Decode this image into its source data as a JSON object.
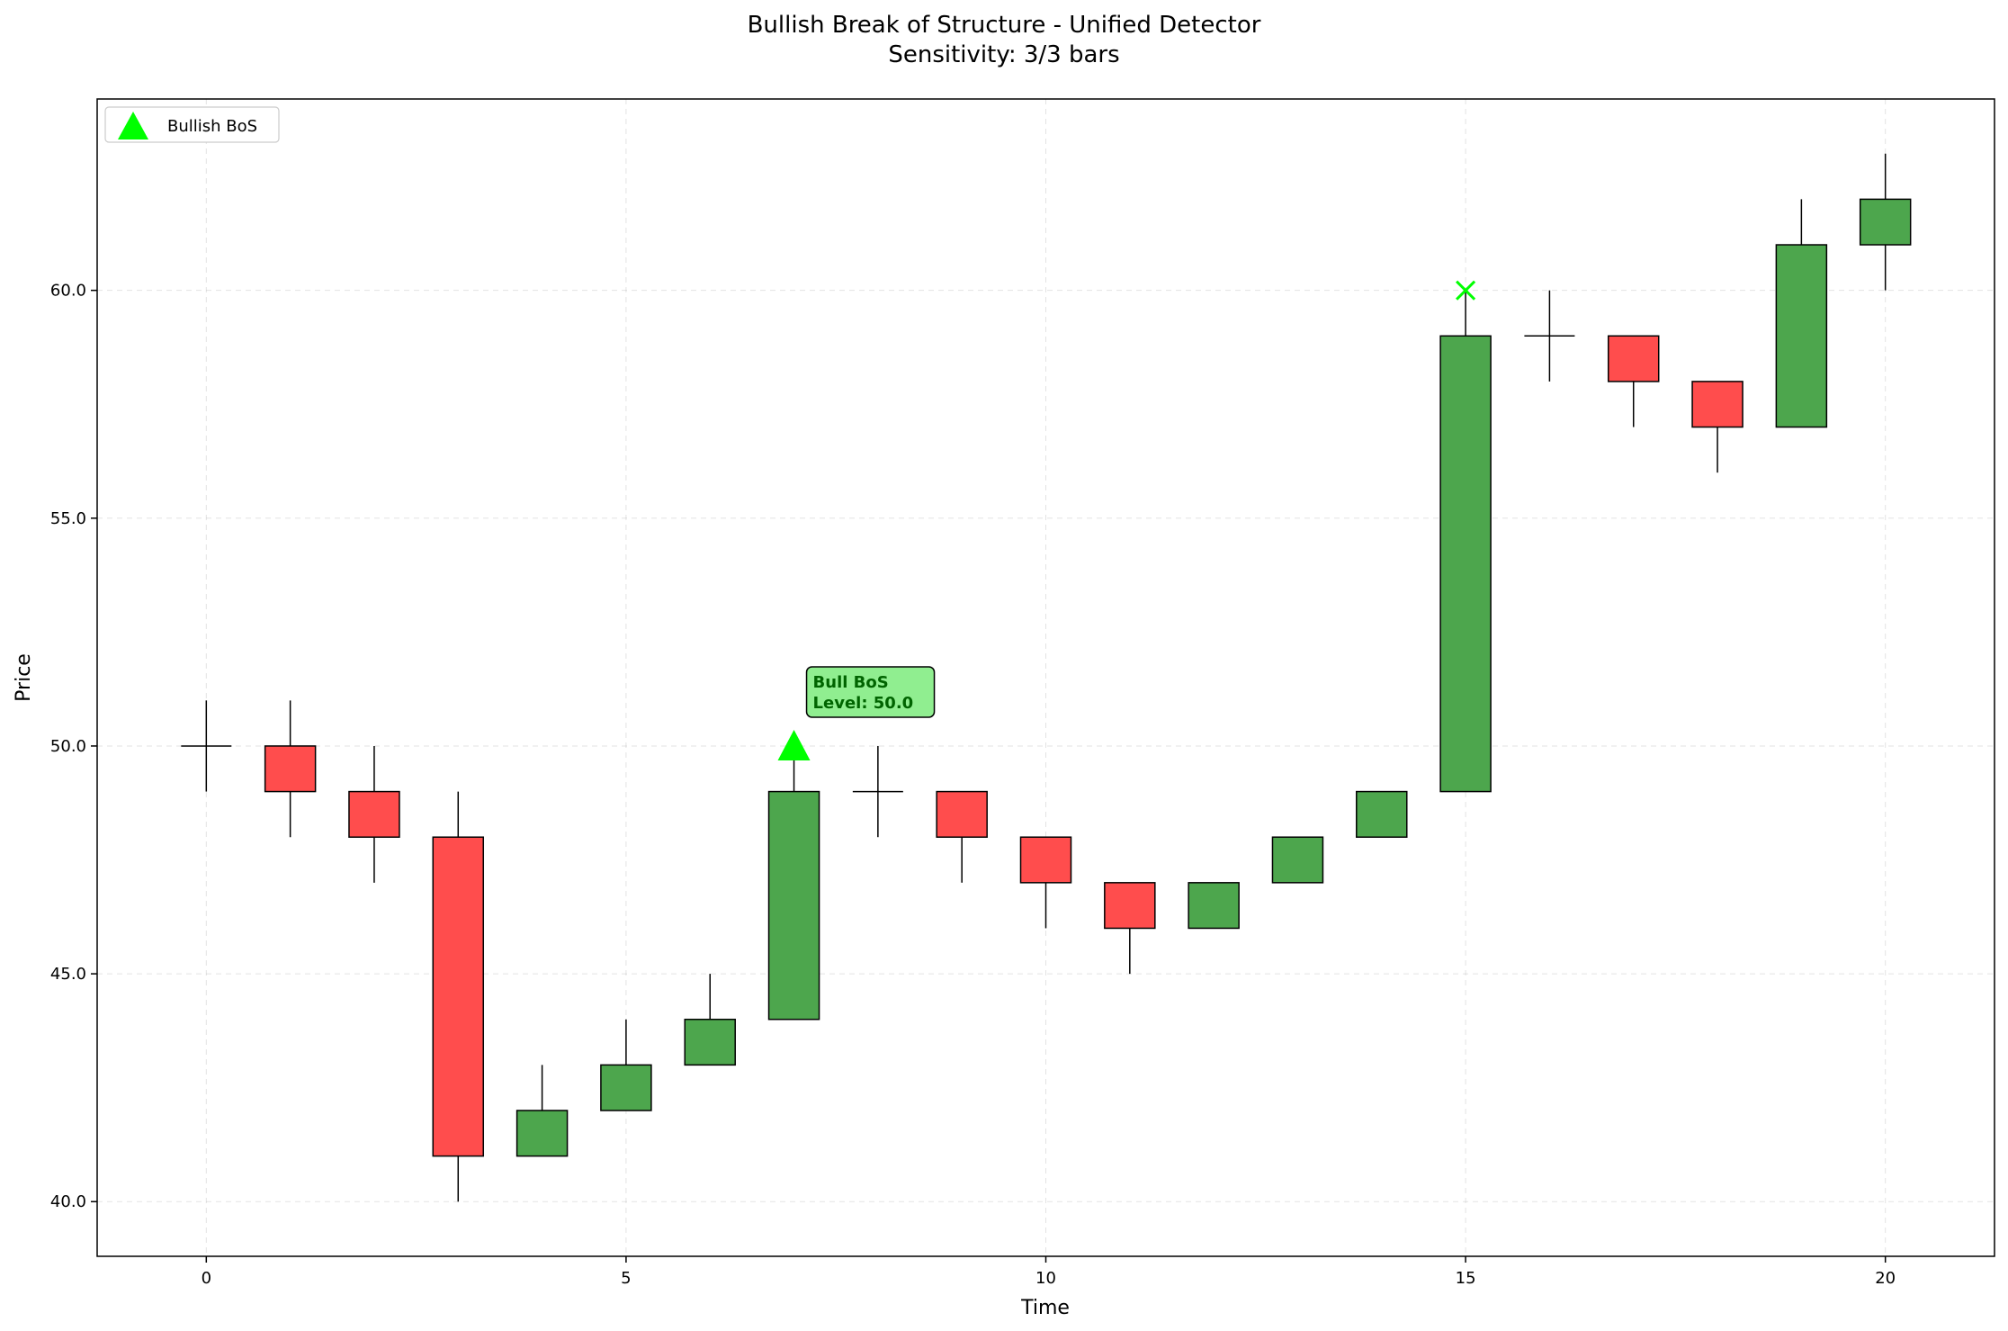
{
  "chart_data": {
    "type": "candlestick",
    "title": "Bullish Break of Structure - Unified Detector",
    "subtitle": "Sensitivity: 3/3 bars",
    "xlabel": "Time",
    "ylabel": "Price",
    "xlim": [
      -1.3,
      21.3
    ],
    "ylim": [
      38.8,
      64.2
    ],
    "xticks": [
      0,
      5,
      10,
      15,
      20
    ],
    "xtick_labels": [
      "0",
      "5",
      "10",
      "15",
      "20"
    ],
    "yticks": [
      40,
      45,
      50,
      55,
      60
    ],
    "ytick_labels": [
      "40.0",
      "45.0",
      "50.0",
      "55.0",
      "60.0"
    ],
    "grid": true,
    "legend": {
      "position": "top-left",
      "entries": [
        {
          "label": "Bullish BoS",
          "marker": "triangle",
          "color": "#00ff00"
        }
      ]
    },
    "colors": {
      "up": "#4da64d",
      "down": "#ff4d4d",
      "edge": "#000000",
      "signal": "#00ff00"
    },
    "candles": [
      {
        "t": 0,
        "open": 50,
        "high": 51,
        "low": 49,
        "close": 50
      },
      {
        "t": 1,
        "open": 50,
        "high": 51,
        "low": 48,
        "close": 49
      },
      {
        "t": 2,
        "open": 49,
        "high": 50,
        "low": 47,
        "close": 48
      },
      {
        "t": 3,
        "open": 48,
        "high": 49,
        "low": 40,
        "close": 41
      },
      {
        "t": 4,
        "open": 41,
        "high": 43,
        "low": 41,
        "close": 42
      },
      {
        "t": 5,
        "open": 42,
        "high": 44,
        "low": 42,
        "close": 43
      },
      {
        "t": 6,
        "open": 43,
        "high": 45,
        "low": 43,
        "close": 44
      },
      {
        "t": 7,
        "open": 44,
        "high": 50,
        "low": 44,
        "close": 49
      },
      {
        "t": 8,
        "open": 49,
        "high": 50,
        "low": 48,
        "close": 49
      },
      {
        "t": 9,
        "open": 49,
        "high": 49,
        "low": 47,
        "close": 48
      },
      {
        "t": 10,
        "open": 48,
        "high": 48,
        "low": 46,
        "close": 47
      },
      {
        "t": 11,
        "open": 47,
        "high": 47,
        "low": 45,
        "close": 46
      },
      {
        "t": 12,
        "open": 46,
        "high": 47,
        "low": 46,
        "close": 47
      },
      {
        "t": 13,
        "open": 47,
        "high": 48,
        "low": 47,
        "close": 48
      },
      {
        "t": 14,
        "open": 48,
        "high": 49,
        "low": 48,
        "close": 49
      },
      {
        "t": 15,
        "open": 49,
        "high": 60,
        "low": 49,
        "close": 59
      },
      {
        "t": 16,
        "open": 59,
        "high": 60,
        "low": 58,
        "close": 59
      },
      {
        "t": 17,
        "open": 59,
        "high": 59,
        "low": 57,
        "close": 58
      },
      {
        "t": 18,
        "open": 58,
        "high": 58,
        "low": 56,
        "close": 57
      },
      {
        "t": 19,
        "open": 57,
        "high": 62,
        "low": 57,
        "close": 61
      },
      {
        "t": 20,
        "open": 61,
        "high": 63,
        "low": 60,
        "close": 62
      }
    ],
    "signals": [
      {
        "t": 7,
        "price": 50.0,
        "type": "Bullish BoS",
        "marker": "triangle"
      }
    ],
    "markers": [
      {
        "t": 15,
        "price": 60.0,
        "marker": "x"
      }
    ],
    "annotations": [
      {
        "t": 7,
        "price": 50.0,
        "line1": "Bull BoS",
        "line2": "Level: 50.0"
      }
    ]
  }
}
